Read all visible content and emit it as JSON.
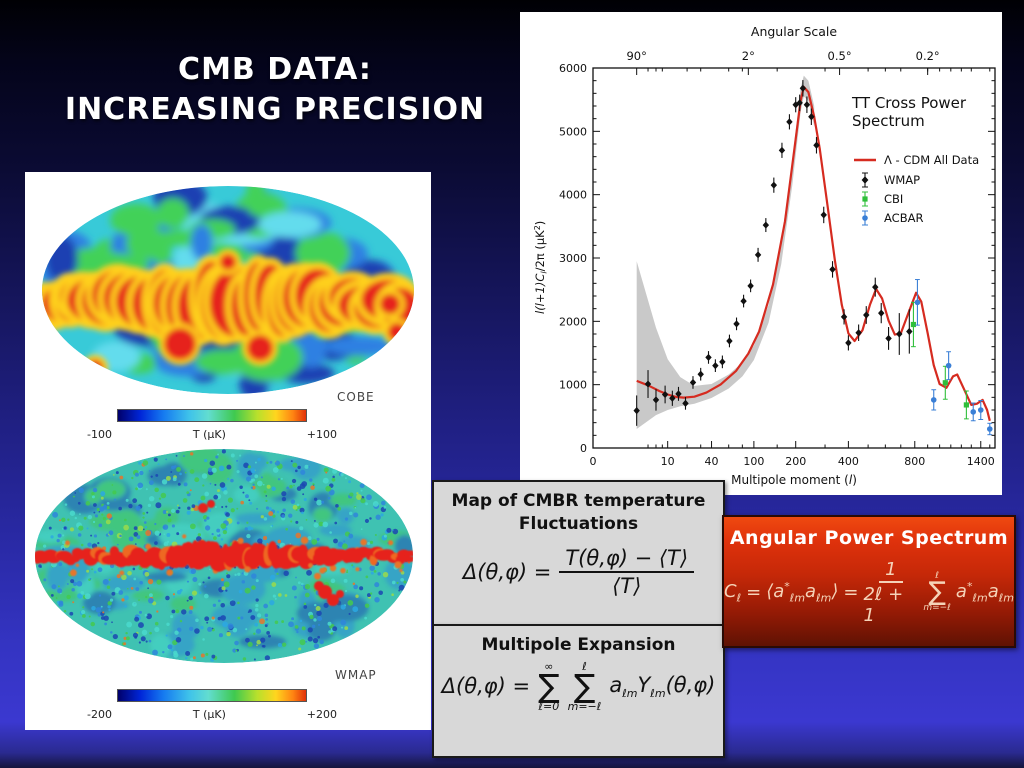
{
  "slide": {
    "title_line1": "CMB DATA:",
    "title_line2": "INCREASING PRECISION"
  },
  "maps_panel": {
    "cobe": {
      "label": "COBE",
      "colorbar_min": "-100",
      "colorbar_title": "T (μK)",
      "colorbar_max": "+100"
    },
    "wmap": {
      "label": "WMAP",
      "colorbar_min": "-200",
      "colorbar_title": "T (μK)",
      "colorbar_max": "+200"
    }
  },
  "boxes": {
    "map_box": {
      "title_line1": "Map of CMBR temperature",
      "title_line2": "Fluctuations",
      "formula": {
        "lhs": "Δ(θ,φ) =",
        "numerator": "T(θ,φ) − ⟨T⟩",
        "denominator": "⟨T⟩"
      }
    },
    "multipole_box": {
      "title": "Multipole Expansion",
      "formula": {
        "lhs": "Δ(θ,φ) =",
        "sum1_top": "∞",
        "sum1_bottom": "ℓ=0",
        "sum2_top": "ℓ",
        "sum2_bottom": "m=−ℓ",
        "term_a": "a",
        "term_a_sub": "ℓm",
        "term_y": "Y",
        "term_y_sub": "ℓm",
        "term_args": "(θ,φ)"
      }
    },
    "power_box": {
      "title": "Angular Power Spectrum",
      "formula": {
        "c": "C",
        "c_sub": "ℓ",
        "eq1": "=",
        "bra": "⟨",
        "a1": "a",
        "a1_sup": "*",
        "a1_sub": "ℓm",
        "a2": "a",
        "a2_sub": "ℓm",
        "ket": "⟩",
        "eq2": "=",
        "frac_num": "1",
        "frac_den": "2ℓ + 1",
        "sum_top": "ℓ",
        "sum_bottom": "m=−ℓ",
        "term1": "a",
        "term1_sup": "*",
        "term1_sub": "ℓm",
        "term2": "a",
        "term2_sub": "ℓm"
      }
    }
  },
  "chart_data": {
    "type": "line",
    "title_line1": "TT Cross Power",
    "title_line2": "Spectrum",
    "top_axis_label": "Angular Scale",
    "top_ticks": [
      {
        "label": "90°",
        "l": 2
      },
      {
        "label": "2°",
        "l": 90
      },
      {
        "label": "0.5°",
        "l": 360
      },
      {
        "label": "0.2°",
        "l": 900
      }
    ],
    "xlabel_parts": [
      "Multipole moment (",
      "l",
      ")"
    ],
    "ylabel_parts": [
      "l(l+1)C",
      "l",
      "/2π (μK",
      "2",
      ")"
    ],
    "x_ticks": [
      0,
      10,
      40,
      100,
      200,
      400,
      800,
      1400
    ],
    "x_minor_ticks": [
      4,
      6,
      8,
      20,
      30,
      60,
      80,
      150,
      300,
      500,
      600,
      700,
      900,
      1000,
      1100,
      1200,
      1300,
      1500
    ],
    "xlim": [
      0,
      1560
    ],
    "ylim": [
      0,
      6000
    ],
    "y_ticks": [
      0,
      1000,
      2000,
      3000,
      4000,
      5000,
      6000
    ],
    "y_minor_step": 200,
    "x_scale": "cbrt(l/1560)",
    "grid": false,
    "legend_position": "upper-right",
    "legend": [
      {
        "label": "Λ - CDM All Data",
        "marker": "line",
        "color": "#d62b20"
      },
      {
        "label": "WMAP",
        "marker": "diamond",
        "color": "#111111"
      },
      {
        "label": "CBI",
        "marker": "square",
        "color": "#2fbf3a"
      },
      {
        "label": "ACBAR",
        "marker": "circle",
        "color": "#3a7fd6"
      }
    ],
    "colors": {
      "curve": "#d62b20",
      "band": "#c9c9c9",
      "wmap": "#111111",
      "cbi": "#2fbf3a",
      "acbar": "#3a7fd6"
    },
    "model_curve": [
      [
        2,
        1060
      ],
      [
        4,
        990
      ],
      [
        7,
        900
      ],
      [
        10,
        845
      ],
      [
        14,
        805
      ],
      [
        18,
        795
      ],
      [
        25,
        810
      ],
      [
        35,
        875
      ],
      [
        50,
        1005
      ],
      [
        70,
        1215
      ],
      [
        90,
        1490
      ],
      [
        110,
        1840
      ],
      [
        140,
        2580
      ],
      [
        170,
        3580
      ],
      [
        200,
        4880
      ],
      [
        215,
        5480
      ],
      [
        225,
        5700
      ],
      [
        240,
        5620
      ],
      [
        260,
        5230
      ],
      [
        280,
        4720
      ],
      [
        310,
        3820
      ],
      [
        340,
        2960
      ],
      [
        370,
        2260
      ],
      [
        400,
        1810
      ],
      [
        430,
        1690
      ],
      [
        470,
        1860
      ],
      [
        510,
        2260
      ],
      [
        545,
        2510
      ],
      [
        580,
        2360
      ],
      [
        620,
        2010
      ],
      [
        660,
        1790
      ],
      [
        700,
        1810
      ],
      [
        750,
        2110
      ],
      [
        810,
        2450
      ],
      [
        850,
        2310
      ],
      [
        900,
        1810
      ],
      [
        950,
        1310
      ],
      [
        1000,
        1010
      ],
      [
        1060,
        950
      ],
      [
        1120,
        1130
      ],
      [
        1160,
        1160
      ],
      [
        1220,
        950
      ],
      [
        1300,
        680
      ],
      [
        1360,
        700
      ],
      [
        1420,
        760
      ],
      [
        1470,
        600
      ],
      [
        1500,
        430
      ]
    ],
    "band_low_l": [
      [
        2,
        300,
        2950
      ],
      [
        6,
        520,
        1900
      ],
      [
        10,
        600,
        1400
      ],
      [
        16,
        660,
        1120
      ],
      [
        25,
        700,
        980
      ],
      [
        40,
        790,
        1010
      ],
      [
        60,
        940,
        1160
      ],
      [
        80,
        1130,
        1350
      ],
      [
        100,
        1390,
        1620
      ],
      [
        130,
        1980,
        2260
      ],
      [
        160,
        2900,
        3250
      ],
      [
        190,
        4150,
        4550
      ],
      [
        215,
        5300,
        5680
      ],
      [
        225,
        5550,
        5880
      ],
      [
        240,
        5480,
        5800
      ],
      [
        260,
        5080,
        5400
      ]
    ],
    "wmap_points": [
      [
        2,
        590,
        240
      ],
      [
        4,
        1010,
        220
      ],
      [
        6,
        760,
        170
      ],
      [
        9,
        845,
        140
      ],
      [
        12,
        785,
        120
      ],
      [
        15,
        855,
        110
      ],
      [
        19,
        705,
        100
      ],
      [
        24,
        1035,
        100
      ],
      [
        30,
        1165,
        100
      ],
      [
        37,
        1430,
        100
      ],
      [
        44,
        1300,
        100
      ],
      [
        52,
        1360,
        100
      ],
      [
        61,
        1690,
        100
      ],
      [
        71,
        1960,
        100
      ],
      [
        82,
        2320,
        100
      ],
      [
        94,
        2560,
        100
      ],
      [
        108,
        3050,
        110
      ],
      [
        124,
        3520,
        110
      ],
      [
        142,
        4150,
        120
      ],
      [
        162,
        4700,
        120
      ],
      [
        182,
        5150,
        120
      ],
      [
        200,
        5420,
        120
      ],
      [
        212,
        5450,
        130
      ],
      [
        222,
        5680,
        130
      ],
      [
        235,
        5420,
        130
      ],
      [
        250,
        5230,
        130
      ],
      [
        268,
        4780,
        130
      ],
      [
        295,
        3680,
        130
      ],
      [
        330,
        2820,
        130
      ],
      [
        380,
        2070,
        120
      ],
      [
        400,
        1660,
        120
      ],
      [
        450,
        1820,
        130
      ],
      [
        490,
        2100,
        140
      ],
      [
        540,
        2540,
        150
      ],
      [
        575,
        2130,
        160
      ],
      [
        620,
        1730,
        180
      ],
      [
        690,
        1800,
        330
      ],
      [
        760,
        1840,
        350
      ]
    ],
    "cbi_points": [
      [
        790,
        1950,
        350
      ],
      [
        1050,
        1030,
        260
      ],
      [
        1250,
        680,
        220
      ]
    ],
    "acbar_points": [
      [
        820,
        2300,
        360
      ],
      [
        950,
        760,
        160
      ],
      [
        1080,
        1300,
        220
      ],
      [
        1320,
        570,
        140
      ],
      [
        1400,
        600,
        150
      ],
      [
        1500,
        300,
        90
      ]
    ]
  },
  "map_colors": {
    "cobe_base": "#38cad8",
    "cobe_blobs": [
      "#1c40b2",
      "#2f80e2",
      "#42d159",
      "#63dced"
    ],
    "band_red": "#e6221a",
    "band_yellow": "#fed01e",
    "wmap_base": "#3fc2b2",
    "wmap_speckles": [
      "#1b46b2",
      "#2f86da",
      "#4ad9cc",
      "#44c94e",
      "#9adb4b",
      "#2ba8e2",
      "#e6762a"
    ]
  }
}
